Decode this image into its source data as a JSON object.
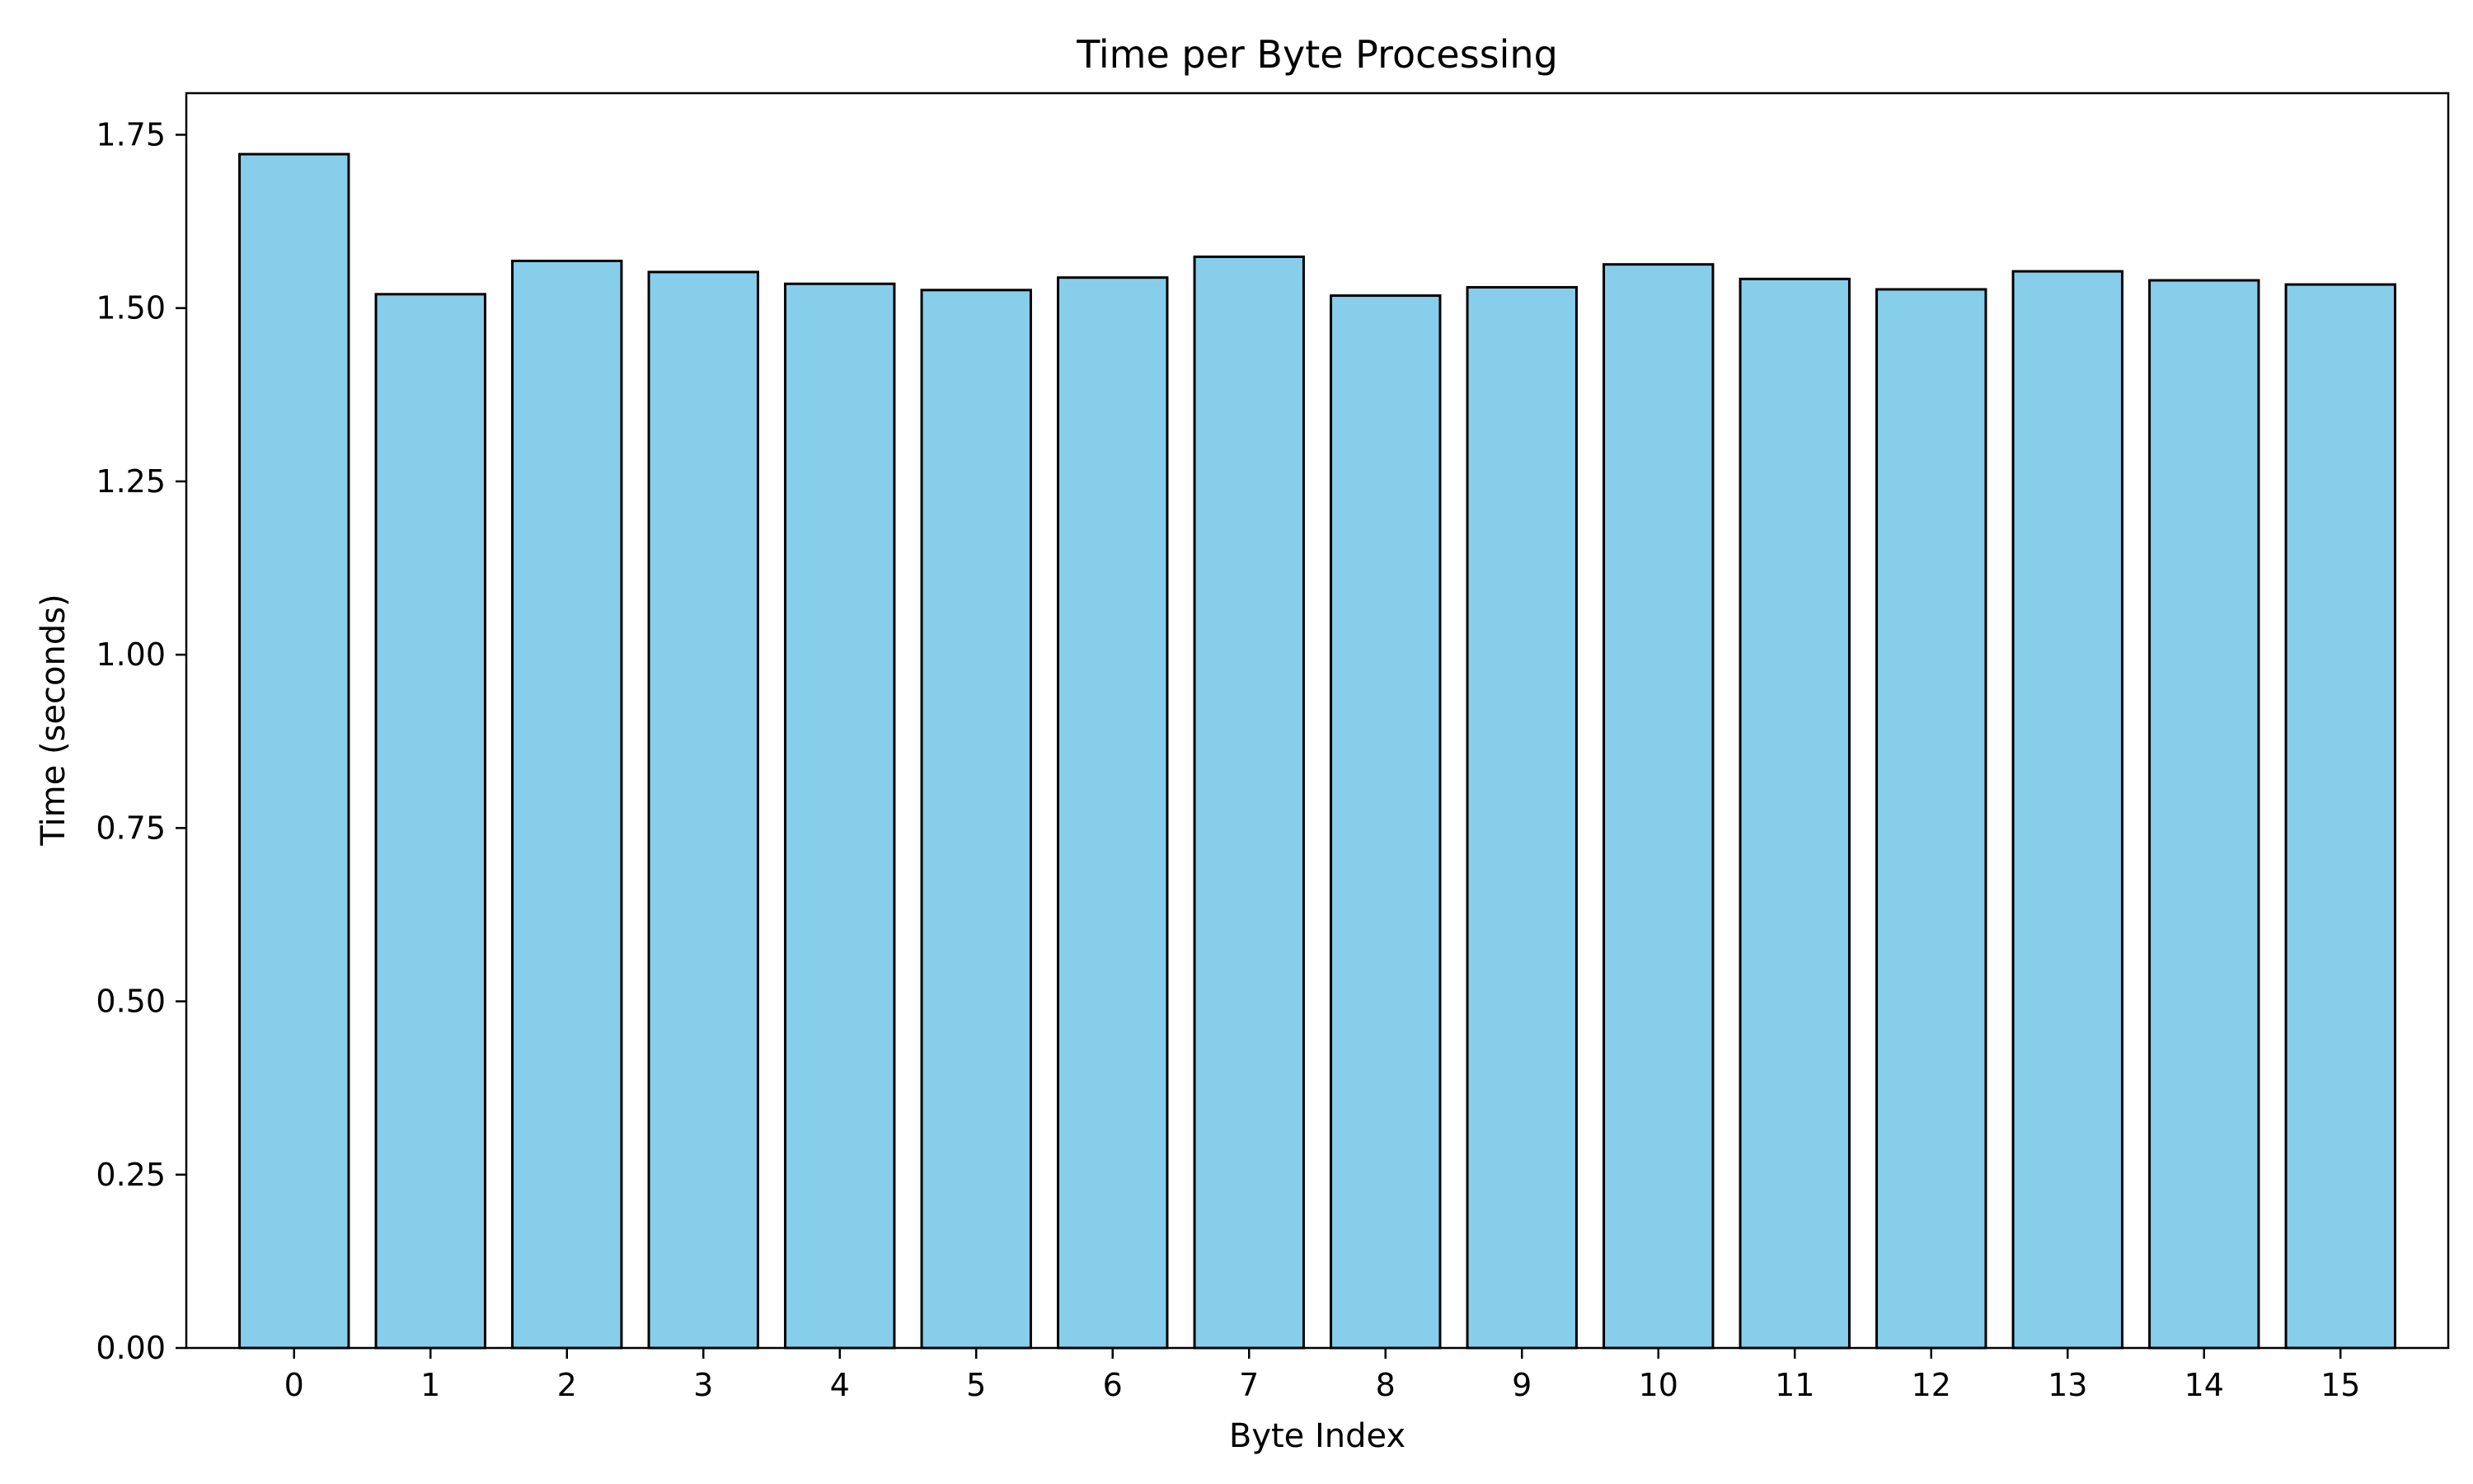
{
  "chart_data": {
    "type": "bar",
    "title": "Time per Byte Processing",
    "xlabel": "Byte Index",
    "ylabel": "Time (seconds)",
    "categories": [
      "0",
      "1",
      "2",
      "3",
      "4",
      "5",
      "6",
      "7",
      "8",
      "9",
      "10",
      "11",
      "12",
      "13",
      "14",
      "15"
    ],
    "values": [
      1.722,
      1.52,
      1.568,
      1.552,
      1.535,
      1.526,
      1.544,
      1.574,
      1.518,
      1.53,
      1.563,
      1.542,
      1.527,
      1.553,
      1.54,
      1.534
    ],
    "ylim": [
      0,
      1.81
    ],
    "yticks": [
      0.0,
      0.25,
      0.5,
      0.75,
      1.0,
      1.25,
      1.5,
      1.75
    ],
    "ytick_labels": [
      "0.00",
      "0.25",
      "0.50",
      "0.75",
      "1.00",
      "1.25",
      "1.50",
      "1.75"
    ],
    "grid": false,
    "legend": "none",
    "colors": {
      "bar_fill": "#87CEEB",
      "bar_edge": "#000000",
      "axes": "#000000",
      "background": "#ffffff"
    }
  }
}
